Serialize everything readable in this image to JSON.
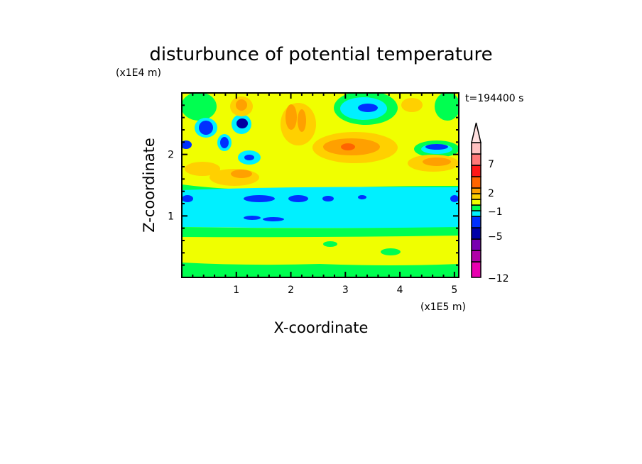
{
  "chart_data": {
    "type": "heatmap",
    "title": "disturbunce of potential temperature",
    "xlabel": "X-coordinate",
    "ylabel": "Z-coordinate",
    "x_unit": "(x1E5 m)",
    "y_unit": "(x1E4 m)",
    "time_label": "t=194400 s",
    "xlim": [
      0,
      5.08
    ],
    "ylim": [
      0,
      3.0
    ],
    "x_ticks": [
      "1",
      "2",
      "3",
      "4",
      "5"
    ],
    "y_ticks": [
      "1",
      "2"
    ],
    "colorbar": {
      "labels": [
        "-12",
        "-5",
        "-1",
        "2",
        "7"
      ],
      "colors_bottom_to_top": [
        "#e800b0",
        "#b000a8",
        "#7800b0",
        "#0000a8",
        "#0030ff",
        "#00f0ff",
        "#00ff50",
        "#f0ff00",
        "#ffd000",
        "#ffa000",
        "#ff6400",
        "#ff1818",
        "#ff7878",
        "#ffc0c0"
      ],
      "extend_top_color": "#ffe0e0"
    },
    "colors": {
      "background": "#f0ff00",
      "green": "#00ff50",
      "cyan": "#00f0ff",
      "blue": "#0030ff",
      "dark_blue": "#0000a0",
      "light_orange": "#ffd000",
      "orange": "#ffa000",
      "dark_orange": "#ff6400"
    }
  }
}
